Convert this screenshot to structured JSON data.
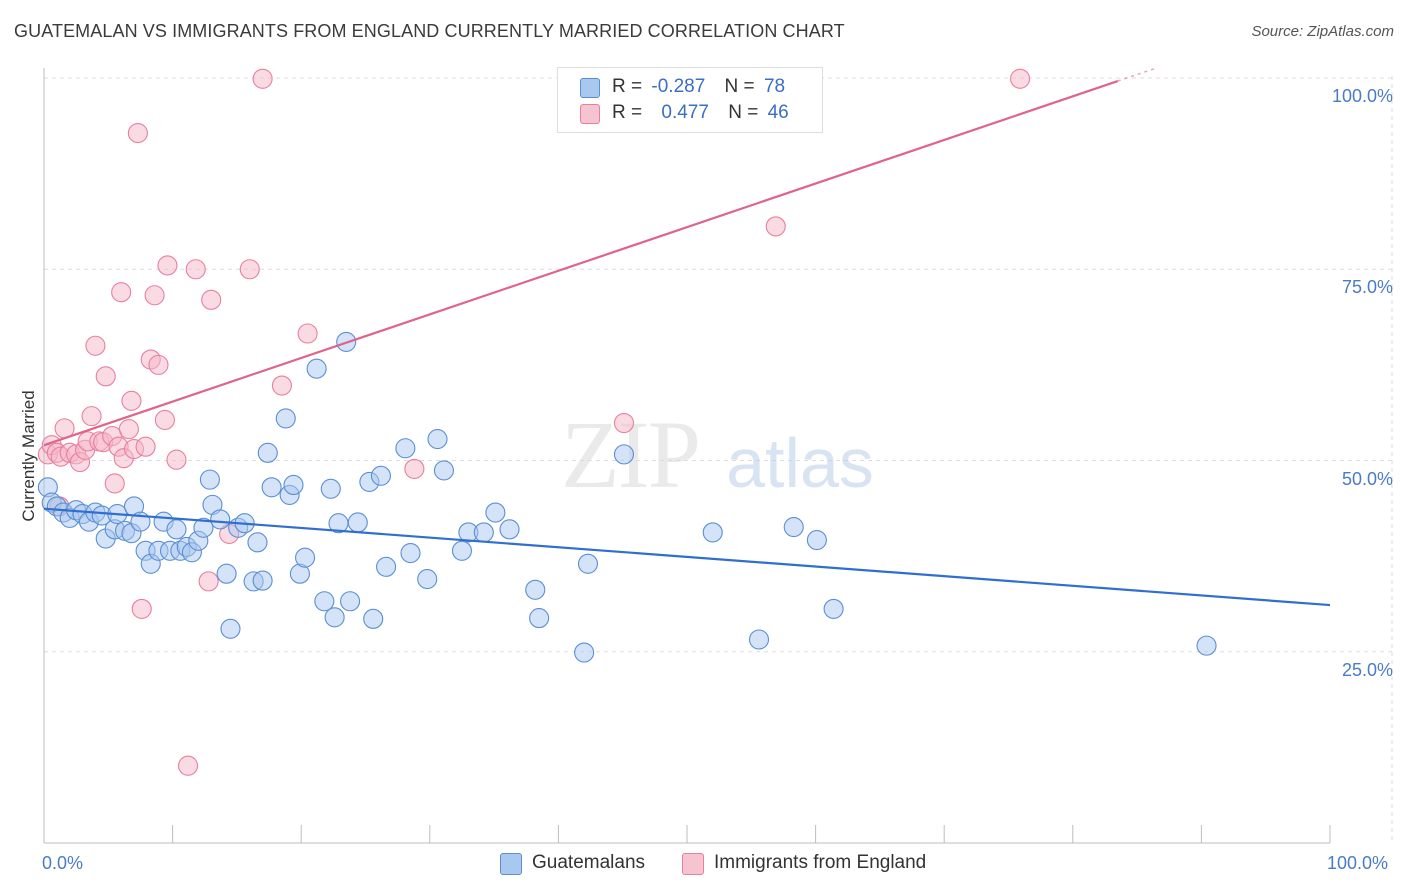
{
  "header": {
    "title": "GUATEMALAN VS IMMIGRANTS FROM ENGLAND CURRENTLY MARRIED CORRELATION CHART",
    "source": "Source: ZipAtlas.com"
  },
  "watermark": {
    "zip": "ZIP",
    "atlas": "atlas"
  },
  "legend": {
    "rows": [
      {
        "r_label": "R =",
        "r_value": "-0.287",
        "n_label": "N =",
        "n_value": "78"
      },
      {
        "r_label": "R =",
        "r_value": "0.477",
        "n_label": "N =",
        "n_value": "46"
      }
    ]
  },
  "bottom_legend": {
    "series_a": "Guatemalans",
    "series_b": "Immigrants from England"
  },
  "colors": {
    "blue_fill": "#a9c8ef",
    "blue_stroke": "#5b8fd4",
    "blue_line": "#2f6fcf",
    "pink_fill": "#f6b8c8",
    "pink_stroke": "#e87fa0",
    "pink_line": "#e0648a",
    "tick_text": "#4a7bc8",
    "grid": "#dddddd"
  },
  "chart_data": {
    "type": "scatter",
    "title": "GUATEMALAN VS IMMIGRANTS FROM ENGLAND CURRENTLY MARRIED CORRELATION CHART",
    "xlabel": "",
    "ylabel": "Currently Married",
    "xlim": [
      0,
      100
    ],
    "ylim": [
      0,
      105
    ],
    "x_tick_labels": [
      "0.0%",
      "100.0%"
    ],
    "y_ticks": [
      25,
      50,
      75,
      100
    ],
    "y_tick_labels": [
      "25.0%",
      "50.0%",
      "75.0%",
      "100.0%"
    ],
    "grid": true,
    "legend_position": "top-center",
    "series": [
      {
        "name": "Guatemalans",
        "r": -0.287,
        "n": 78,
        "trend": {
          "x": [
            0,
            100
          ],
          "y": [
            43.7,
            31.1
          ]
        },
        "points": [
          [
            0.3,
            46.5
          ],
          [
            0.6,
            44.5
          ],
          [
            1.0,
            44.0
          ],
          [
            1.5,
            43.2
          ],
          [
            2.0,
            42.5
          ],
          [
            2.5,
            43.5
          ],
          [
            3.0,
            43.0
          ],
          [
            3.5,
            42.0
          ],
          [
            4.0,
            43.2
          ],
          [
            4.5,
            42.8
          ],
          [
            4.8,
            39.8
          ],
          [
            5.5,
            41.0
          ],
          [
            5.7,
            43.0
          ],
          [
            6.3,
            40.8
          ],
          [
            6.8,
            40.5
          ],
          [
            7.0,
            44.0
          ],
          [
            7.5,
            42.0
          ],
          [
            7.9,
            38.2
          ],
          [
            8.3,
            36.5
          ],
          [
            8.9,
            38.2
          ],
          [
            9.3,
            42.0
          ],
          [
            9.8,
            38.2
          ],
          [
            10.3,
            41.0
          ],
          [
            10.6,
            38.2
          ],
          [
            11.1,
            38.7
          ],
          [
            11.5,
            38.0
          ],
          [
            12.0,
            39.5
          ],
          [
            12.4,
            41.2
          ],
          [
            12.9,
            47.5
          ],
          [
            13.1,
            44.2
          ],
          [
            13.7,
            42.3
          ],
          [
            14.2,
            35.2
          ],
          [
            14.5,
            28.0
          ],
          [
            15.1,
            41.2
          ],
          [
            15.6,
            41.8
          ],
          [
            16.3,
            34.2
          ],
          [
            16.6,
            39.3
          ],
          [
            17.0,
            34.3
          ],
          [
            17.4,
            51.0
          ],
          [
            17.7,
            46.5
          ],
          [
            18.8,
            55.5
          ],
          [
            19.1,
            45.5
          ],
          [
            19.4,
            46.8
          ],
          [
            19.9,
            35.2
          ],
          [
            20.3,
            37.3
          ],
          [
            21.2,
            62.0
          ],
          [
            21.8,
            31.6
          ],
          [
            22.3,
            46.3
          ],
          [
            22.6,
            29.5
          ],
          [
            22.9,
            41.8
          ],
          [
            23.5,
            65.5
          ],
          [
            23.8,
            31.6
          ],
          [
            24.4,
            41.9
          ],
          [
            25.3,
            47.2
          ],
          [
            25.6,
            29.3
          ],
          [
            26.2,
            48.0
          ],
          [
            26.6,
            36.1
          ],
          [
            28.1,
            51.6
          ],
          [
            28.5,
            37.9
          ],
          [
            29.8,
            34.5
          ],
          [
            30.6,
            52.8
          ],
          [
            31.1,
            48.7
          ],
          [
            32.5,
            38.2
          ],
          [
            33.0,
            40.6
          ],
          [
            34.2,
            40.6
          ],
          [
            35.1,
            43.2
          ],
          [
            36.2,
            41.0
          ],
          [
            38.2,
            33.1
          ],
          [
            38.5,
            29.4
          ],
          [
            42.0,
            24.9
          ],
          [
            42.3,
            36.5
          ],
          [
            45.1,
            50.8
          ],
          [
            52.0,
            40.6
          ],
          [
            55.6,
            26.6
          ],
          [
            58.3,
            41.3
          ],
          [
            60.1,
            39.6
          ],
          [
            61.4,
            30.6
          ],
          [
            90.4,
            25.8
          ]
        ]
      },
      {
        "name": "Immigrants from England",
        "r": 0.477,
        "n": 46,
        "trend": {
          "x": [
            0,
            83.5
          ],
          "y": [
            52.0,
            99.6
          ]
        },
        "points": [
          [
            0.3,
            50.8
          ],
          [
            0.6,
            52.0
          ],
          [
            1.0,
            51.0
          ],
          [
            1.3,
            50.5
          ],
          [
            1.6,
            54.2
          ],
          [
            2.0,
            51.0
          ],
          [
            2.5,
            50.8
          ],
          [
            2.8,
            49.8
          ],
          [
            3.2,
            51.4
          ],
          [
            3.4,
            52.5
          ],
          [
            3.7,
            55.8
          ],
          [
            4.0,
            65.0
          ],
          [
            4.3,
            52.5
          ],
          [
            4.6,
            52.4
          ],
          [
            4.8,
            61.0
          ],
          [
            5.3,
            53.2
          ],
          [
            5.5,
            47.0
          ],
          [
            5.8,
            51.8
          ],
          [
            6.0,
            72.0
          ],
          [
            6.2,
            50.3
          ],
          [
            6.6,
            54.1
          ],
          [
            6.8,
            57.8
          ],
          [
            7.0,
            51.5
          ],
          [
            7.3,
            92.8
          ],
          [
            7.6,
            30.6
          ],
          [
            7.9,
            51.8
          ],
          [
            8.3,
            63.2
          ],
          [
            8.6,
            71.6
          ],
          [
            8.9,
            62.5
          ],
          [
            9.4,
            55.3
          ],
          [
            9.6,
            75.5
          ],
          [
            10.3,
            50.1
          ],
          [
            11.2,
            10.1
          ],
          [
            11.8,
            75.0
          ],
          [
            12.8,
            34.2
          ],
          [
            13.0,
            71.0
          ],
          [
            14.4,
            40.4
          ],
          [
            16.0,
            75.0
          ],
          [
            17.0,
            99.9
          ],
          [
            18.5,
            59.8
          ],
          [
            20.5,
            66.6
          ],
          [
            28.8,
            48.9
          ],
          [
            45.1,
            54.9
          ],
          [
            56.9,
            80.6
          ],
          [
            75.9,
            99.9
          ],
          [
            1.2,
            44.0
          ]
        ]
      }
    ]
  }
}
